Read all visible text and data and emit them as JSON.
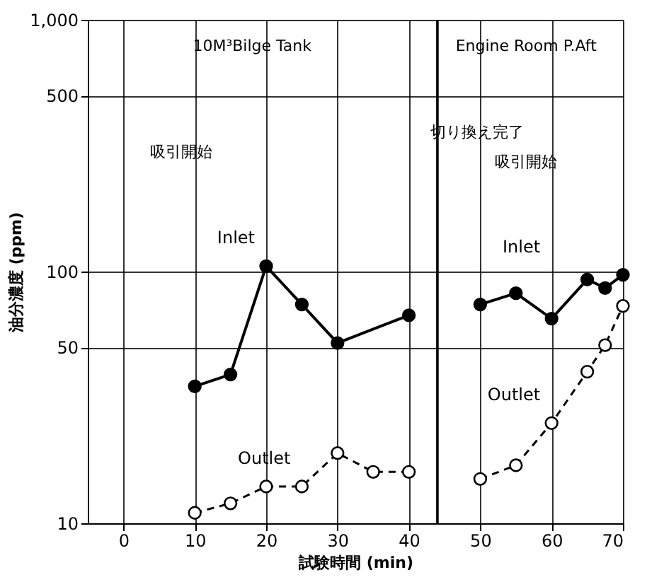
{
  "chart_data": {
    "type": "line",
    "xlabel": "試験時間 (min)",
    "ylabel": "油分濃度 (ppm)",
    "series": [
      {
        "name": "Inlet",
        "color": "#000000",
        "marker": "circle",
        "line_style": "solid",
        "x": [
          10,
          15,
          20,
          25,
          30,
          40,
          45,
          50,
          55,
          60,
          65,
          67.5,
          70
        ],
        "values": [
          35,
          39,
          105,
          74,
          52,
          67,
          null,
          74,
          82,
          65,
          93,
          86,
          97
        ]
      },
      {
        "name": "Outlet",
        "color": "#000000",
        "marker": "circle",
        "line_style": "dashed",
        "x": [
          10,
          15,
          20,
          25,
          30,
          35,
          40,
          45,
          50,
          55,
          60,
          65,
          67.5,
          70
        ],
        "values": [
          11,
          12,
          14,
          14,
          19,
          16,
          16,
          null,
          15,
          17,
          25,
          40,
          51,
          73
        ]
      }
    ],
    "log": true,
    "xlim": [
      -5,
      70
    ],
    "xticks": [
      0,
      10,
      20,
      30,
      40,
      50,
      60,
      70
    ],
    "ylim": [
      10,
      1000
    ],
    "yticks": [
      10,
      50,
      100,
      500,
      {
        "value": 1000,
        "label": "1,000"
      }
    ],
    "grid": true,
    "ref_lines": [
      {
        "axis": "x",
        "value": 44
      }
    ],
    "annotations": [
      "10M³Bilge Tank",
      "Engine Room P.Aft",
      "吸引開始",
      "切り換え完了",
      "吸引開始"
    ]
  }
}
